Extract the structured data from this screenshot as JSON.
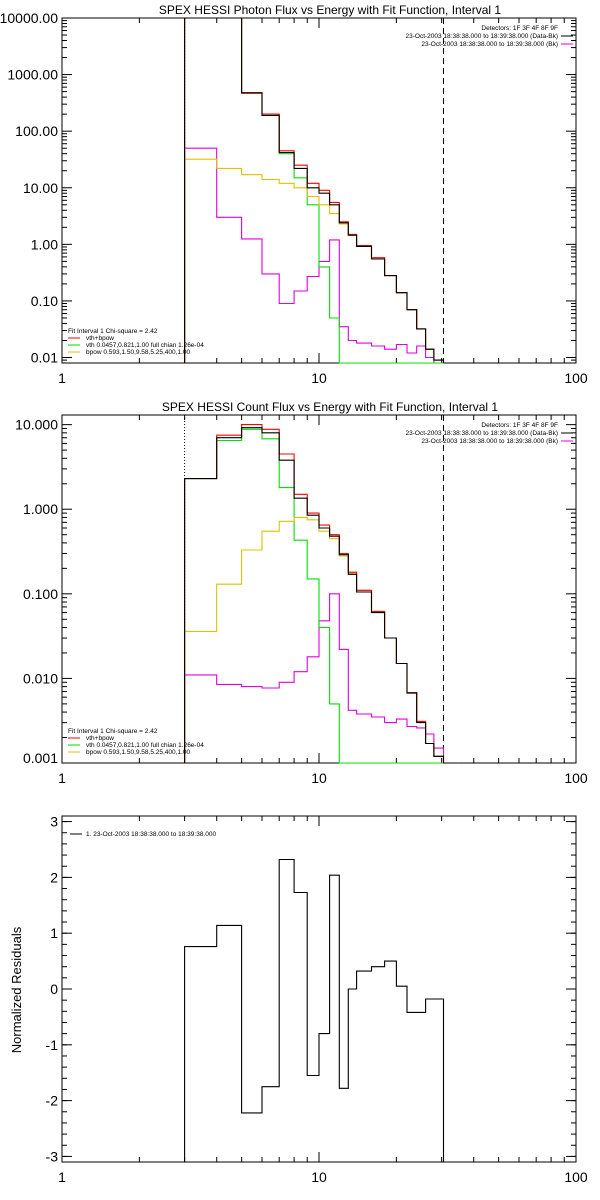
{
  "colors": {
    "total": "#000000",
    "sum": "#ff0000",
    "vth": "#00e000",
    "bpow": "#e0c000",
    "data": "#e000e0",
    "frame": "#000000"
  },
  "chart_data": [
    {
      "type": "line",
      "title": "SPEX HESSI Photon Flux vs Energy with Fit Function, Interval 1",
      "xscale": "log",
      "yscale": "log",
      "xlim": [
        1,
        100
      ],
      "ylim": [
        0.008,
        10000
      ],
      "xticks": [
        {
          "v": 1,
          "label": "1"
        },
        {
          "v": 10,
          "label": "10"
        },
        {
          "v": 100,
          "label": "100"
        }
      ],
      "yticks": [
        {
          "v": 10000,
          "label": "10000.00"
        },
        {
          "v": 1000,
          "label": "1000.00"
        },
        {
          "v": 100,
          "label": "100.00"
        },
        {
          "v": 10,
          "label": "10.00"
        },
        {
          "v": 1,
          "label": "1.00"
        },
        {
          "v": 0.1,
          "label": "0.10"
        },
        {
          "v": 0.01,
          "label": "0.01"
        }
      ],
      "fit_range": [
        3,
        30.5
      ],
      "header_lines": [
        "Detectors: 1F 3F 4F 8F 9F",
        "23-Oct-2003 18:38:38.000 to 18:39:38.000 (Data-Bk)",
        "23-Oct-2003 18:38:38.000 to 18:39:38.000 (Bk)"
      ],
      "legend_lines": [
        "Fit Interval 1    Chi-square = 2.42",
        "vth+bpow",
        "vth 0.0457,0.821,1.00  full chian 1.26e-04",
        "bpow 0.593,1.50,9.58,5.25,400,1.00"
      ],
      "bin_edges": [
        3,
        4,
        5,
        6,
        7,
        8,
        9,
        10,
        11,
        12,
        13,
        14,
        16,
        18,
        20,
        22,
        24,
        26,
        28,
        30.5
      ],
      "series": [
        {
          "key": "data",
          "values": [
            50,
            3,
            1.25,
            0.3,
            0.09,
            0.15,
            0.27,
            0.5,
            1.2,
            0.035,
            0.02,
            0.018,
            0.016,
            0.014,
            0.017,
            0.012,
            0.016,
            0.01,
            0.008
          ]
        },
        {
          "key": "vth",
          "values": [
            10000,
            10000,
            470,
            190,
            40,
            15,
            5,
            0.4,
            0.05,
            0.008,
            0.008,
            0.008,
            0.008,
            0.008,
            0.008,
            0.008,
            0.008,
            0.008,
            0.008
          ]
        },
        {
          "key": "bpow",
          "values": [
            32,
            22,
            17,
            14,
            12,
            10,
            7,
            5,
            3.5,
            2.3,
            1.45,
            0.92,
            0.55,
            0.28,
            0.14,
            0.07,
            0.032,
            0.014,
            0.009
          ]
        },
        {
          "key": "sum",
          "values": [
            10000,
            10000,
            480,
            200,
            45,
            25,
            12,
            9,
            5.5,
            2.5,
            1.5,
            0.95,
            0.58,
            0.28,
            0.14,
            0.07,
            0.032,
            0.014,
            0.009
          ]
        },
        {
          "key": "total",
          "values": [
            10000,
            10000,
            470,
            190,
            42,
            22,
            10,
            8,
            5,
            2.4,
            1.45,
            0.92,
            0.55,
            0.28,
            0.14,
            0.07,
            0.032,
            0.014,
            0.009
          ]
        }
      ]
    },
    {
      "type": "line",
      "title": "SPEX HESSI Count Flux vs Energy with Fit Function, Interval 1",
      "xscale": "log",
      "yscale": "log",
      "xlim": [
        1,
        100
      ],
      "ylim": [
        0.001,
        13
      ],
      "xticks": [
        {
          "v": 1,
          "label": "1"
        },
        {
          "v": 10,
          "label": "10"
        },
        {
          "v": 100,
          "label": "100"
        }
      ],
      "yticks": [
        {
          "v": 10,
          "label": "10.000"
        },
        {
          "v": 1,
          "label": "1.000"
        },
        {
          "v": 0.1,
          "label": "0.100"
        },
        {
          "v": 0.01,
          "label": "0.010"
        },
        {
          "v": 0.001,
          "label": "0.001"
        }
      ],
      "fit_range": [
        3,
        30.5
      ],
      "header_lines": [
        "Detectors: 1F 3F 4F 8F 9F",
        "23-Oct-2003 18:38:38.000 to 18:39:38.000 (Data-Bk)",
        "23-Oct-2003 18:38:38.000 to 18:39:38.000 (Bk)"
      ],
      "legend_lines": [
        "Fit Interval 1    Chi-square = 2.42",
        "vth+bpow",
        "vth 0.0457,0.821,1.00  full chian 1.26e-04",
        "bpow 0.593,1.50,9.58,5.25,400,1.00"
      ],
      "bin_edges": [
        3,
        4,
        5,
        6,
        7,
        8,
        9,
        10,
        11,
        12,
        13,
        14,
        16,
        18,
        20,
        22,
        24,
        26,
        28,
        30.5,
        35
      ],
      "series": [
        {
          "key": "data",
          "values": [
            0.011,
            0.0085,
            0.008,
            0.0077,
            0.009,
            0.012,
            0.018,
            0.048,
            0.1,
            0.022,
            0.0042,
            0.0038,
            0.0035,
            0.003,
            0.0033,
            0.0027,
            0.0026,
            0.0022,
            0.0015,
            0.001
          ]
        },
        {
          "key": "vth",
          "values": [
            2.3,
            6.5,
            8.8,
            6.8,
            1.8,
            0.43,
            0.15,
            0.04,
            0.005,
            0.0009,
            0.0009,
            0.0009,
            0.0009,
            0.0009,
            0.0009,
            0.0009,
            0.0009,
            0.0009,
            0.0009,
            0.0009
          ]
        },
        {
          "key": "bpow",
          "values": [
            0.036,
            0.13,
            0.33,
            0.55,
            0.72,
            0.8,
            0.75,
            0.55,
            0.45,
            0.28,
            0.175,
            0.11,
            0.062,
            0.03,
            0.015,
            0.0068,
            0.0031,
            0.0017,
            0.0012,
            0.0008
          ]
        },
        {
          "key": "sum",
          "values": [
            2.3,
            7.5,
            10,
            8.8,
            4.5,
            1.5,
            0.9,
            0.65,
            0.5,
            0.3,
            0.18,
            0.11,
            0.062,
            0.03,
            0.015,
            0.0068,
            0.0031,
            0.0017,
            0.0012,
            0.0008
          ]
        },
        {
          "key": "total",
          "values": [
            2.3,
            7,
            9.2,
            8,
            3.8,
            1.35,
            0.85,
            0.6,
            0.48,
            0.29,
            0.17,
            0.105,
            0.06,
            0.03,
            0.015,
            0.0067,
            0.003,
            0.0017,
            0.0012,
            0.0008
          ]
        }
      ]
    },
    {
      "type": "line",
      "title": "",
      "xscale": "log",
      "yscale": "linear",
      "xlim": [
        1,
        100
      ],
      "ylim": [
        -3.1,
        3.1
      ],
      "ylabel": "Normalized Residuals",
      "xticks": [
        {
          "v": 1,
          "label": "1"
        },
        {
          "v": 10,
          "label": "10"
        },
        {
          "v": 100,
          "label": "100"
        }
      ],
      "yticks": [
        {
          "v": 3,
          "label": "3"
        },
        {
          "v": 2,
          "label": "2"
        },
        {
          "v": 1,
          "label": "1"
        },
        {
          "v": 0,
          "label": "0"
        },
        {
          "v": -1,
          "label": "-1"
        },
        {
          "v": -2,
          "label": "-2"
        },
        {
          "v": -3,
          "label": "-3"
        }
      ],
      "legend_lines": [
        "1. 23-Oct-2003 18:38:38.000 to 18:39:38.000"
      ],
      "bin_edges": [
        3,
        4,
        5,
        6,
        7,
        8,
        9,
        10,
        11,
        12,
        13,
        14,
        16,
        18,
        20,
        22,
        24,
        26,
        28,
        30.5
      ],
      "series": [
        {
          "key": "total",
          "values": [
            0.76,
            1.14,
            -2.22,
            -1.75,
            2.32,
            1.73,
            -1.55,
            -0.8,
            2.04,
            -1.78,
            0,
            0.32,
            0.4,
            0.5,
            0.05,
            -0.42,
            -0.42,
            -0.18,
            -0.18
          ]
        }
      ]
    }
  ]
}
